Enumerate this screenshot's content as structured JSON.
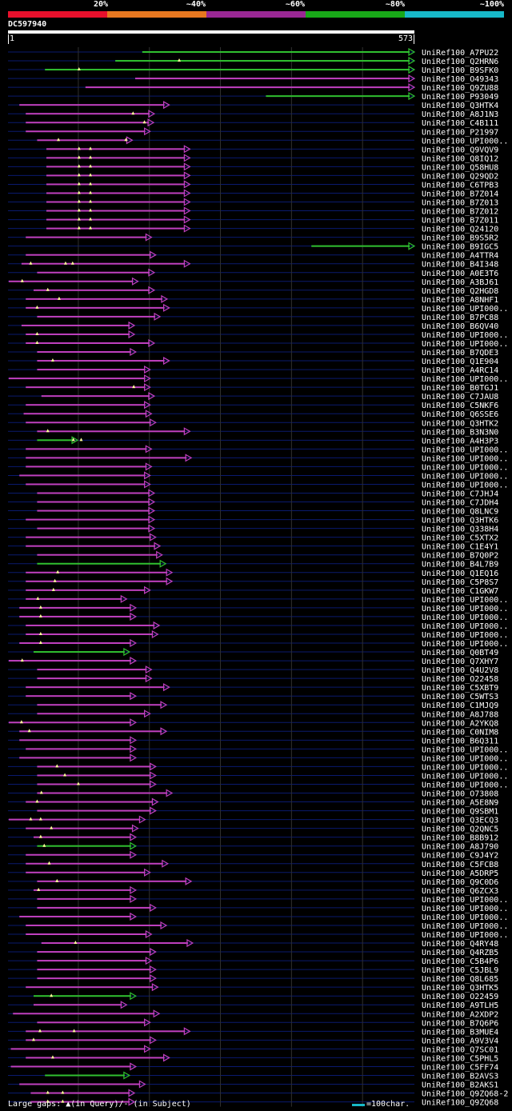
{
  "colors": {
    "background": "#000000",
    "query_bar": "#ffffff",
    "track": "#0a1a6e",
    "grid": "#303030",
    "identity_bands": [
      "#e8102c",
      "#e87820",
      "#9a2894",
      "#18a818",
      "#17b8c8"
    ],
    "hit_low": "#c040c0",
    "hit_high": "#30c030",
    "gap_marker": "#ffff99"
  },
  "chart_data": {
    "type": "alignment-overview",
    "title": "DC597940",
    "query_length": 573,
    "scale_start": "1",
    "scale_end": "573",
    "identity_legend": [
      "20%",
      "~40%",
      "~60%",
      "~80%",
      "~100%"
    ],
    "footer_note": "Large gaps: ▲(in Query)/- (in Subject)",
    "scale_note": "=100char.",
    "hits": [
      {
        "name": "UniRef100_A7PU22",
        "start": 190,
        "end": 573,
        "group": "high",
        "gaps": []
      },
      {
        "name": "UniRef100_Q2HRN6",
        "start": 152,
        "end": 573,
        "group": "high",
        "gaps": [
          242
        ]
      },
      {
        "name": "UniRef100_B9SFK0",
        "start": 53,
        "end": 573,
        "group": "high",
        "gaps": [
          101
        ]
      },
      {
        "name": "UniRef100_O49343",
        "start": 180,
        "end": 573,
        "group": "low",
        "gaps": []
      },
      {
        "name": "UniRef100_Q9ZU88",
        "start": 110,
        "end": 573,
        "group": "low",
        "gaps": []
      },
      {
        "name": "UniRef100_P93049",
        "start": 364,
        "end": 573,
        "group": "high",
        "gaps": []
      },
      {
        "name": "UniRef100_Q3HTK4",
        "start": 17,
        "end": 228,
        "group": "low",
        "gaps": []
      },
      {
        "name": "UniRef100_A8J1N3",
        "start": 26,
        "end": 207,
        "group": "low",
        "gaps": [
          177
        ]
      },
      {
        "name": "UniRef100_C4B111",
        "start": 26,
        "end": 206,
        "group": "low",
        "gaps": [
          193
        ]
      },
      {
        "name": "UniRef100_P21997",
        "start": 26,
        "end": 201,
        "group": "low",
        "gaps": []
      },
      {
        "name": "UniRef100_UPI000..",
        "start": 42,
        "end": 176,
        "group": "low",
        "gaps": [
          72,
          167
        ]
      },
      {
        "name": "UniRef100_Q9VQV9",
        "start": 55,
        "end": 257,
        "group": "low",
        "gaps": [
          101,
          117
        ]
      },
      {
        "name": "UniRef100_Q8IQ12",
        "start": 55,
        "end": 257,
        "group": "low",
        "gaps": [
          101,
          117
        ]
      },
      {
        "name": "UniRef100_Q58HU8",
        "start": 55,
        "end": 257,
        "group": "low",
        "gaps": [
          101,
          117
        ]
      },
      {
        "name": "UniRef100_Q29QD2",
        "start": 55,
        "end": 257,
        "group": "low",
        "gaps": [
          101,
          117
        ]
      },
      {
        "name": "UniRef100_C6TPB3",
        "start": 55,
        "end": 257,
        "group": "low",
        "gaps": [
          101,
          117
        ]
      },
      {
        "name": "UniRef100_B7Z014",
        "start": 55,
        "end": 257,
        "group": "low",
        "gaps": [
          101,
          117
        ]
      },
      {
        "name": "UniRef100_B7Z013",
        "start": 55,
        "end": 257,
        "group": "low",
        "gaps": [
          101,
          117
        ]
      },
      {
        "name": "UniRef100_B7Z012",
        "start": 55,
        "end": 257,
        "group": "low",
        "gaps": [
          101,
          117
        ]
      },
      {
        "name": "UniRef100_B7Z011",
        "start": 55,
        "end": 257,
        "group": "low",
        "gaps": [
          101,
          117
        ]
      },
      {
        "name": "UniRef100_Q24120",
        "start": 55,
        "end": 257,
        "group": "low",
        "gaps": [
          101,
          117
        ]
      },
      {
        "name": "UniRef100_B9S5R2",
        "start": 26,
        "end": 203,
        "group": "low",
        "gaps": []
      },
      {
        "name": "UniRef100_B9IGC5",
        "start": 428,
        "end": 573,
        "group": "high",
        "gaps": []
      },
      {
        "name": "UniRef100_A4TTR4",
        "start": 26,
        "end": 209,
        "group": "low",
        "gaps": []
      },
      {
        "name": "UniRef100_B4I348",
        "start": 20,
        "end": 257,
        "group": "low",
        "gaps": [
          33,
          82,
          92
        ]
      },
      {
        "name": "UniRef100_A0E3T6",
        "start": 42,
        "end": 207,
        "group": "low",
        "gaps": []
      },
      {
        "name": "UniRef100_A3BJ61",
        "start": 2,
        "end": 184,
        "group": "low",
        "gaps": [
          21
        ]
      },
      {
        "name": "UniRef100_Q2HGD8",
        "start": 37,
        "end": 207,
        "group": "low",
        "gaps": [
          57
        ]
      },
      {
        "name": "UniRef100_A8NHF1",
        "start": 26,
        "end": 225,
        "group": "low",
        "gaps": [
          73
        ]
      },
      {
        "name": "UniRef100_UPI000..",
        "start": 26,
        "end": 228,
        "group": "low",
        "gaps": [
          42
        ]
      },
      {
        "name": "UniRef100_B7PC88",
        "start": 42,
        "end": 215,
        "group": "low",
        "gaps": []
      },
      {
        "name": "UniRef100_B6QV40",
        "start": 20,
        "end": 179,
        "group": "low",
        "gaps": []
      },
      {
        "name": "UniRef100_UPI000..",
        "start": 26,
        "end": 179,
        "group": "low",
        "gaps": [
          42
        ]
      },
      {
        "name": "UniRef100_UPI000..",
        "start": 26,
        "end": 207,
        "group": "low",
        "gaps": [
          42
        ]
      },
      {
        "name": "UniRef100_B7QDE3",
        "start": 42,
        "end": 181,
        "group": "low",
        "gaps": []
      },
      {
        "name": "UniRef100_Q1E904",
        "start": 42,
        "end": 228,
        "group": "low",
        "gaps": [
          64
        ]
      },
      {
        "name": "UniRef100_A4RC14",
        "start": 42,
        "end": 201,
        "group": "low",
        "gaps": []
      },
      {
        "name": "UniRef100_UPI000..",
        "start": 2,
        "end": 201,
        "group": "low",
        "gaps": []
      },
      {
        "name": "UniRef100_B0TGJ1",
        "start": 26,
        "end": 201,
        "group": "low",
        "gaps": [
          178
        ]
      },
      {
        "name": "UniRef100_C7JAU8",
        "start": 48,
        "end": 207,
        "group": "low",
        "gaps": []
      },
      {
        "name": "UniRef100_C5NKF6",
        "start": 26,
        "end": 201,
        "group": "low",
        "gaps": []
      },
      {
        "name": "UniRef100_Q6SSE6",
        "start": 23,
        "end": 203,
        "group": "low",
        "gaps": []
      },
      {
        "name": "UniRef100_Q3HTK2",
        "start": 26,
        "end": 209,
        "group": "low",
        "gaps": []
      },
      {
        "name": "UniRef100_B3N3N0",
        "start": 42,
        "end": 257,
        "group": "low",
        "gaps": [
          57
        ]
      },
      {
        "name": "UniRef100_A4H3P3",
        "start": 42,
        "end": 99,
        "group": "high",
        "gaps": [
          93,
          104
        ]
      },
      {
        "name": "UniRef100_UPI000..",
        "start": 26,
        "end": 203,
        "group": "low",
        "gaps": []
      },
      {
        "name": "UniRef100_UPI000..",
        "start": 26,
        "end": 259,
        "group": "low",
        "gaps": []
      },
      {
        "name": "UniRef100_UPI000..",
        "start": 26,
        "end": 203,
        "group": "low",
        "gaps": []
      },
      {
        "name": "UniRef100_UPI000..",
        "start": 17,
        "end": 201,
        "group": "low",
        "gaps": []
      },
      {
        "name": "UniRef100_UPI000..",
        "start": 26,
        "end": 201,
        "group": "low",
        "gaps": []
      },
      {
        "name": "UniRef100_C7JHJ4",
        "start": 42,
        "end": 207,
        "group": "low",
        "gaps": []
      },
      {
        "name": "UniRef100_C7JDH4",
        "start": 42,
        "end": 207,
        "group": "low",
        "gaps": []
      },
      {
        "name": "UniRef100_Q8LNC9",
        "start": 42,
        "end": 207,
        "group": "low",
        "gaps": []
      },
      {
        "name": "UniRef100_Q3HTK6",
        "start": 26,
        "end": 207,
        "group": "low",
        "gaps": []
      },
      {
        "name": "UniRef100_Q338H4",
        "start": 42,
        "end": 207,
        "group": "low",
        "gaps": []
      },
      {
        "name": "UniRef100_C5XTX2",
        "start": 26,
        "end": 209,
        "group": "low",
        "gaps": []
      },
      {
        "name": "UniRef100_C1E4Y1",
        "start": 26,
        "end": 215,
        "group": "low",
        "gaps": []
      },
      {
        "name": "UniRef100_B7Q0P2",
        "start": 42,
        "end": 218,
        "group": "low",
        "gaps": []
      },
      {
        "name": "UniRef100_B4L7B9",
        "start": 42,
        "end": 223,
        "group": "high",
        "gaps": []
      },
      {
        "name": "UniRef100_Q1EQ16",
        "start": 26,
        "end": 232,
        "group": "low",
        "gaps": [
          71
        ]
      },
      {
        "name": "UniRef100_C5P8S7",
        "start": 26,
        "end": 232,
        "group": "low",
        "gaps": [
          67
        ]
      },
      {
        "name": "UniRef100_C1GKW7",
        "start": 26,
        "end": 201,
        "group": "low",
        "gaps": [
          65
        ]
      },
      {
        "name": "UniRef100_UPI000..",
        "start": 26,
        "end": 168,
        "group": "low",
        "gaps": [
          43
        ]
      },
      {
        "name": "UniRef100_UPI000..",
        "start": 17,
        "end": 181,
        "group": "low",
        "gaps": [
          47
        ]
      },
      {
        "name": "UniRef100_UPI000..",
        "start": 17,
        "end": 181,
        "group": "low",
        "gaps": [
          47
        ]
      },
      {
        "name": "UniRef100_UPI000..",
        "start": 26,
        "end": 214,
        "group": "low",
        "gaps": []
      },
      {
        "name": "UniRef100_UPI000..",
        "start": 26,
        "end": 212,
        "group": "low",
        "gaps": [
          47
        ]
      },
      {
        "name": "UniRef100_UPI000..",
        "start": 17,
        "end": 181,
        "group": "low",
        "gaps": [
          47
        ]
      },
      {
        "name": "UniRef100_Q0BT49",
        "start": 37,
        "end": 172,
        "group": "high",
        "gaps": []
      },
      {
        "name": "UniRef100_Q7XHY7",
        "start": 2,
        "end": 181,
        "group": "low",
        "gaps": [
          21
        ]
      },
      {
        "name": "UniRef100_Q4U2V8",
        "start": 42,
        "end": 203,
        "group": "low",
        "gaps": []
      },
      {
        "name": "UniRef100_O22458",
        "start": 42,
        "end": 203,
        "group": "low",
        "gaps": []
      },
      {
        "name": "UniRef100_C5XBT9",
        "start": 26,
        "end": 228,
        "group": "low",
        "gaps": []
      },
      {
        "name": "UniRef100_C5WTS3",
        "start": 26,
        "end": 181,
        "group": "low",
        "gaps": []
      },
      {
        "name": "UniRef100_C1MJQ9",
        "start": 42,
        "end": 224,
        "group": "low",
        "gaps": []
      },
      {
        "name": "UniRef100_A8J788",
        "start": 42,
        "end": 201,
        "group": "low",
        "gaps": []
      },
      {
        "name": "UniRef100_A2YKQ8",
        "start": 2,
        "end": 181,
        "group": "low",
        "gaps": [
          20
        ]
      },
      {
        "name": "UniRef100_C0NIM8",
        "start": 17,
        "end": 224,
        "group": "low",
        "gaps": [
          31
        ]
      },
      {
        "name": "UniRef100_B6Q311",
        "start": 17,
        "end": 181,
        "group": "low",
        "gaps": []
      },
      {
        "name": "UniRef100_UPI000..",
        "start": 26,
        "end": 181,
        "group": "low",
        "gaps": []
      },
      {
        "name": "UniRef100_UPI000..",
        "start": 17,
        "end": 181,
        "group": "low",
        "gaps": []
      },
      {
        "name": "UniRef100_UPI000..",
        "start": 42,
        "end": 209,
        "group": "low",
        "gaps": [
          70
        ]
      },
      {
        "name": "UniRef100_UPI000..",
        "start": 42,
        "end": 209,
        "group": "low",
        "gaps": [
          81
        ]
      },
      {
        "name": "UniRef100_UPI000..",
        "start": 42,
        "end": 209,
        "group": "low",
        "gaps": [
          100
        ]
      },
      {
        "name": "UniRef100_O73808",
        "start": 42,
        "end": 232,
        "group": "low",
        "gaps": [
          48
        ]
      },
      {
        "name": "UniRef100_A5E8N9",
        "start": 26,
        "end": 212,
        "group": "low",
        "gaps": [
          42
        ]
      },
      {
        "name": "UniRef100_Q9SBM1",
        "start": 42,
        "end": 209,
        "group": "low",
        "gaps": []
      },
      {
        "name": "UniRef100_Q3ECQ3",
        "start": 2,
        "end": 194,
        "group": "low",
        "gaps": [
          33,
          47
        ]
      },
      {
        "name": "UniRef100_Q2QNC5",
        "start": 26,
        "end": 184,
        "group": "low",
        "gaps": [
          62
        ]
      },
      {
        "name": "UniRef100_B8B912",
        "start": 37,
        "end": 181,
        "group": "low",
        "gaps": [
          47
        ]
      },
      {
        "name": "UniRef100_A8J790",
        "start": 42,
        "end": 181,
        "group": "high",
        "gaps": [
          52
        ]
      },
      {
        "name": "UniRef100_C9J4Y2",
        "start": 26,
        "end": 181,
        "group": "low",
        "gaps": []
      },
      {
        "name": "UniRef100_C5FCB8",
        "start": 26,
        "end": 226,
        "group": "low",
        "gaps": [
          59
        ]
      },
      {
        "name": "UniRef100_A5DRP5",
        "start": 26,
        "end": 201,
        "group": "low",
        "gaps": []
      },
      {
        "name": "UniRef100_Q9C0D6",
        "start": 42,
        "end": 259,
        "group": "low",
        "gaps": [
          70
        ]
      },
      {
        "name": "UniRef100_Q6ZCX3",
        "start": 37,
        "end": 181,
        "group": "low",
        "gaps": [
          44
        ]
      },
      {
        "name": "UniRef100_UPI000..",
        "start": 42,
        "end": 181,
        "group": "low",
        "gaps": []
      },
      {
        "name": "UniRef100_UPI000..",
        "start": 42,
        "end": 209,
        "group": "low",
        "gaps": []
      },
      {
        "name": "UniRef100_UPI000..",
        "start": 17,
        "end": 181,
        "group": "low",
        "gaps": []
      },
      {
        "name": "UniRef100_UPI000..",
        "start": 26,
        "end": 224,
        "group": "low",
        "gaps": []
      },
      {
        "name": "UniRef100_UPI000..",
        "start": 26,
        "end": 203,
        "group": "low",
        "gaps": []
      },
      {
        "name": "UniRef100_Q4RY48",
        "start": 48,
        "end": 261,
        "group": "low",
        "gaps": [
          96
        ]
      },
      {
        "name": "UniRef100_Q4RZB5",
        "start": 42,
        "end": 209,
        "group": "low",
        "gaps": []
      },
      {
        "name": "UniRef100_C5B4P6",
        "start": 42,
        "end": 203,
        "group": "low",
        "gaps": []
      },
      {
        "name": "UniRef100_C5JBL9",
        "start": 42,
        "end": 209,
        "group": "low",
        "gaps": []
      },
      {
        "name": "UniRef100_Q8L685",
        "start": 42,
        "end": 209,
        "group": "low",
        "gaps": []
      },
      {
        "name": "UniRef100_Q3HTK5",
        "start": 26,
        "end": 212,
        "group": "low",
        "gaps": []
      },
      {
        "name": "UniRef100_O22459",
        "start": 37,
        "end": 181,
        "group": "high",
        "gaps": [
          62
        ]
      },
      {
        "name": "UniRef100_A9TLH5",
        "start": 37,
        "end": 168,
        "group": "low",
        "gaps": []
      },
      {
        "name": "UniRef100_A2XDP2",
        "start": 8,
        "end": 214,
        "group": "low",
        "gaps": []
      },
      {
        "name": "UniRef100_B7Q6P6",
        "start": 42,
        "end": 201,
        "group": "low",
        "gaps": []
      },
      {
        "name": "UniRef100_B3MUE4",
        "start": 26,
        "end": 257,
        "group": "low",
        "gaps": [
          46,
          94
        ]
      },
      {
        "name": "UniRef100_A9V3V4",
        "start": 26,
        "end": 209,
        "group": "low",
        "gaps": [
          37
        ]
      },
      {
        "name": "UniRef100_Q7SC01",
        "start": 5,
        "end": 201,
        "group": "low",
        "gaps": []
      },
      {
        "name": "UniRef100_C5PHL5",
        "start": 26,
        "end": 228,
        "group": "low",
        "gaps": [
          64
        ]
      },
      {
        "name": "UniRef100_C5FF74",
        "start": 5,
        "end": 181,
        "group": "low",
        "gaps": []
      },
      {
        "name": "UniRef100_B2AVS3",
        "start": 53,
        "end": 172,
        "group": "high",
        "gaps": []
      },
      {
        "name": "UniRef100_B2AKS1",
        "start": 17,
        "end": 194,
        "group": "low",
        "gaps": []
      },
      {
        "name": "UniRef100_Q9ZQ68-2",
        "start": 33,
        "end": 179,
        "group": "low",
        "gaps": [
          57,
          78
        ]
      },
      {
        "name": "UniRef100_Q9ZQ68",
        "start": 33,
        "end": 179,
        "group": "low",
        "gaps": [
          57,
          78
        ]
      }
    ]
  }
}
